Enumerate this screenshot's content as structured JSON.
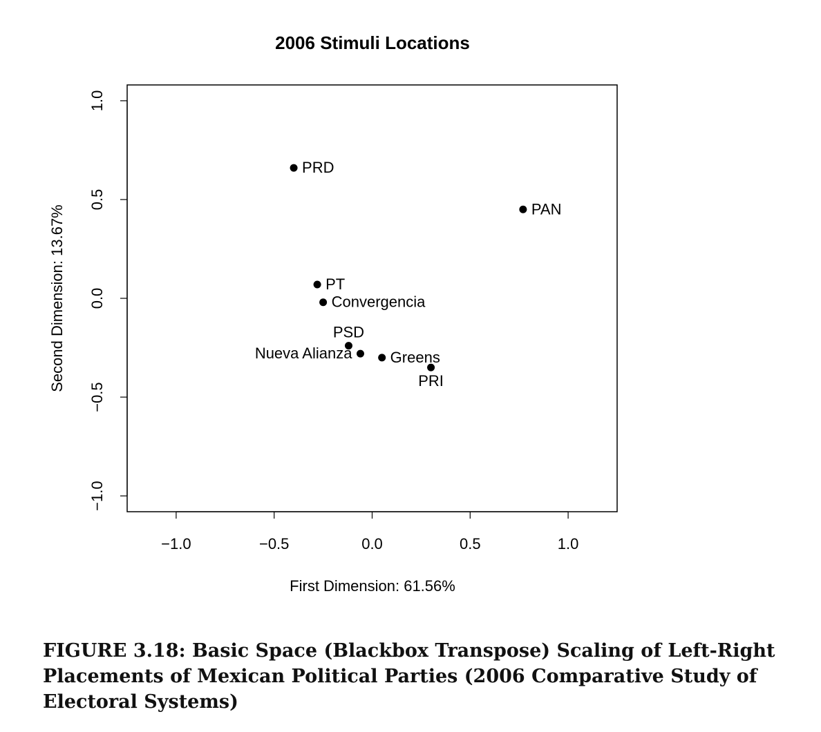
{
  "chart_data": {
    "type": "scatter",
    "title": "2006 Stimuli Locations",
    "xlabel": "First Dimension: 61.56%",
    "ylabel": "Second Dimension: 13.67%",
    "xlim": [
      -1.25,
      1.25
    ],
    "ylim": [
      -1.08,
      1.08
    ],
    "x_ticks": [
      -1.0,
      -0.5,
      0.0,
      0.5,
      1.0
    ],
    "x_tick_labels": [
      "−1.0",
      "−0.5",
      "0.0",
      "0.5",
      "1.0"
    ],
    "y_ticks": [
      -1.0,
      -0.5,
      0.0,
      0.5,
      1.0
    ],
    "y_tick_labels": [
      "−1.0",
      "−0.5",
      "0.0",
      "0.5",
      "1.0"
    ],
    "grid": false,
    "points": [
      {
        "label": "PRD",
        "x": -0.4,
        "y": 0.66,
        "label_pos": "right"
      },
      {
        "label": "PAN",
        "x": 0.77,
        "y": 0.45,
        "label_pos": "right"
      },
      {
        "label": "PT",
        "x": -0.28,
        "y": 0.07,
        "label_pos": "right"
      },
      {
        "label": "Convergencia",
        "x": -0.25,
        "y": -0.02,
        "label_pos": "right"
      },
      {
        "label": "PSD",
        "x": -0.12,
        "y": -0.24,
        "label_pos": "top"
      },
      {
        "label": "Nueva Alianza",
        "x": -0.06,
        "y": -0.28,
        "label_pos": "left"
      },
      {
        "label": "Greens",
        "x": 0.05,
        "y": -0.3,
        "label_pos": "right"
      },
      {
        "label": "PRI",
        "x": 0.3,
        "y": -0.35,
        "label_pos": "bottom"
      }
    ]
  },
  "caption": "FIGURE 3.18: Basic Space (Blackbox Transpose) Scaling of Left-Right Placements of Mexican Political Parties (2006 Comparative Study of Electoral Systems)"
}
